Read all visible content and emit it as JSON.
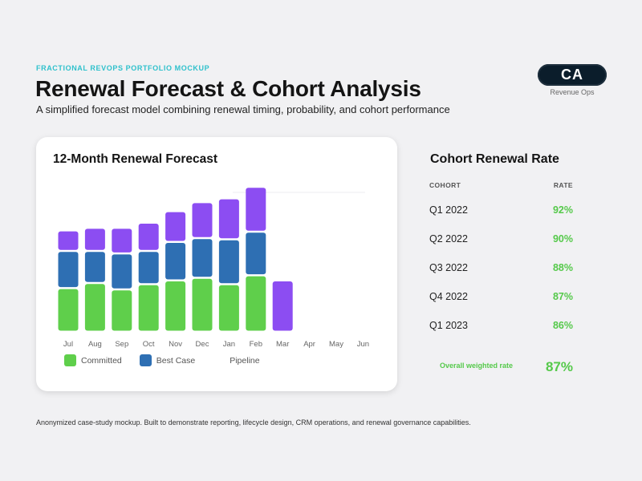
{
  "header": {
    "eyebrow": "FRACTIONAL REVOPS PORTFOLIO MOCKUP",
    "title": "Renewal Forecast & Cohort Analysis",
    "subtitle": "A simplified forecast model combining renewal timing, probability, and cohort performance",
    "badge": "CA",
    "badge_caption": "Revenue Ops"
  },
  "chart_card": {
    "title": "12-Month Renewal Forecast"
  },
  "chart_data": {
    "type": "bar",
    "stacked": true,
    "categories": [
      "Jul",
      "Aug",
      "Sep",
      "Oct",
      "Nov",
      "Dec",
      "Jan",
      "Feb",
      "Mar",
      "Apr",
      "May",
      "Jun"
    ],
    "series": [
      {
        "name": "Committed",
        "color": "#5fcf4b",
        "values": [
          34,
          38,
          33,
          37,
          40,
          42,
          37,
          44,
          0,
          0,
          0,
          0
        ]
      },
      {
        "name": "Best Case",
        "color": "#2e6fb3",
        "values": [
          29,
          25,
          28,
          26,
          30,
          31,
          35,
          34,
          0,
          0,
          0,
          0
        ]
      },
      {
        "name": "Pipeline",
        "color": "#8c4df2",
        "values": [
          16,
          18,
          20,
          22,
          24,
          28,
          32,
          35,
          40,
          0,
          0,
          0
        ]
      }
    ],
    "ylim": [
      0,
      160
    ],
    "grid": false,
    "legend": "bottom-left"
  },
  "cohort_panel": {
    "title": "Cohort Renewal Rate",
    "col_cohort": "COHORT",
    "col_rate": "RATE",
    "rows": [
      {
        "cohort": "Q1 2022",
        "rate": "92%"
      },
      {
        "cohort": "Q2 2022",
        "rate": "90%"
      },
      {
        "cohort": "Q3 2022",
        "rate": "88%"
      },
      {
        "cohort": "Q4 2022",
        "rate": "87%"
      },
      {
        "cohort": "Q1 2023",
        "rate": "86%"
      }
    ],
    "overall_label": "Overall weighted rate",
    "overall_value": "87%"
  },
  "footer": "Anonymized case-study mockup. Built to demonstrate reporting, lifecycle design, CRM operations, and renewal governance capabilities.",
  "colors": {
    "accent_teal": "#2fc1cc",
    "rate_green": "#55c94a",
    "badge_bg": "#0b1d2b"
  }
}
